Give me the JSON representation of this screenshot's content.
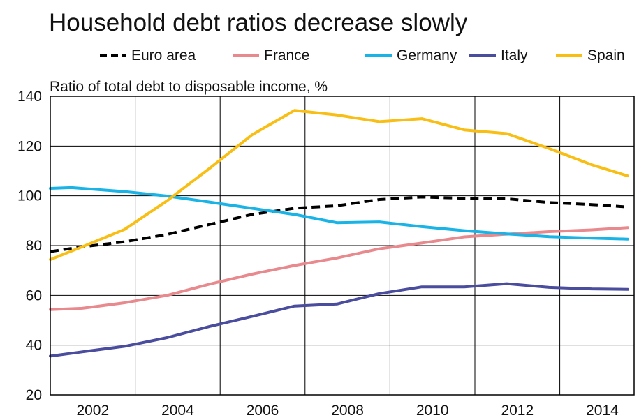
{
  "chart_data": {
    "type": "line",
    "title": "Household debt ratios decrease slowly",
    "ylabel": "Ratio of total debt to disposable income, %",
    "xlim": [
      2001,
      2014.75
    ],
    "ylim": [
      20,
      140
    ],
    "xticks": [
      2002,
      2004,
      2006,
      2008,
      2010,
      2012,
      2014
    ],
    "yticks": [
      20,
      40,
      60,
      80,
      100,
      120,
      140
    ],
    "grid": true,
    "legend_position": "top",
    "series": [
      {
        "name": "Euro area",
        "color": "#000000",
        "style": "dashed",
        "x": [
          2001,
          2001.75,
          2002.75,
          2003.75,
          2004.75,
          2005.75,
          2006.75,
          2007.75,
          2008.75,
          2009.75,
          2010.75,
          2011.75,
          2012.75,
          2013.75,
          2014.6
        ],
        "y": [
          77.6,
          79.5,
          81.5,
          84.5,
          88.5,
          92.5,
          95.0,
          96.0,
          98.5,
          99.5,
          99.0,
          98.8,
          97.3,
          96.5,
          95.5
        ]
      },
      {
        "name": "France",
        "color": "#E8898D",
        "style": "solid",
        "x": [
          2001,
          2001.75,
          2002.75,
          2003.75,
          2004.75,
          2005.75,
          2006.75,
          2007.75,
          2008.75,
          2009.75,
          2010.75,
          2011.75,
          2012.75,
          2013.75,
          2014.6
        ],
        "y": [
          54.3,
          54.8,
          57.0,
          60.0,
          64.5,
          68.5,
          72.0,
          75.0,
          78.7,
          81.0,
          83.5,
          84.6,
          85.6,
          86.3,
          87.2
        ]
      },
      {
        "name": "Germany",
        "color": "#1AB3E6",
        "style": "solid",
        "x": [
          2001,
          2001.5,
          2002.75,
          2003.75,
          2004.75,
          2005.75,
          2006.75,
          2007.75,
          2008.75,
          2009.75,
          2010.75,
          2011.75,
          2012.75,
          2013.75,
          2014.6
        ],
        "y": [
          103.0,
          103.3,
          101.7,
          99.9,
          97.5,
          95.0,
          92.5,
          89.2,
          89.5,
          87.6,
          86.0,
          84.7,
          83.6,
          83.0,
          82.6
        ]
      },
      {
        "name": "Italy",
        "color": "#4A4C9E",
        "style": "solid",
        "x": [
          2001,
          2001.75,
          2002.75,
          2003.75,
          2004.75,
          2005.75,
          2006.75,
          2007.75,
          2008.75,
          2009.75,
          2010.75,
          2011.75,
          2012.75,
          2013.75,
          2014.6
        ],
        "y": [
          35.6,
          37.3,
          39.5,
          43.0,
          47.5,
          51.5,
          55.7,
          56.5,
          60.7,
          63.4,
          63.4,
          64.7,
          63.2,
          62.6,
          62.4
        ]
      },
      {
        "name": "Spain",
        "color": "#F8BE14",
        "style": "solid",
        "x": [
          2001,
          2001.75,
          2002.75,
          2003.75,
          2004.75,
          2005.75,
          2006.75,
          2007.75,
          2008.75,
          2009.75,
          2010.75,
          2011.75,
          2012.75,
          2013.75,
          2014.6
        ],
        "y": [
          74.4,
          79.5,
          86.5,
          98.0,
          111.0,
          124.5,
          134.3,
          132.5,
          129.8,
          131.0,
          126.5,
          125.0,
          119.0,
          112.5,
          108.0
        ]
      }
    ]
  }
}
